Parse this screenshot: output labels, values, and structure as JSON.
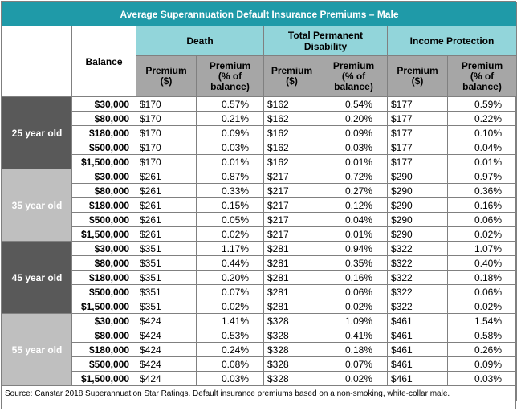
{
  "title": "Average Superannuation Default Insurance Premiums – Male",
  "balance_header": "Balance",
  "groups": [
    "Death",
    "Total Permanent\nDisability",
    "Income Protection"
  ],
  "sub_headers": {
    "premium": "Premium\n($)",
    "pct": "Premium\n(% of\nbalance)"
  },
  "age_groups": [
    {
      "label": "25 year old",
      "rows": [
        {
          "balance": "$30,000",
          "values": [
            "$170",
            "0.57%",
            "$162",
            "0.54%",
            "$177",
            "0.59%"
          ]
        },
        {
          "balance": "$80,000",
          "values": [
            "$170",
            "0.21%",
            "$162",
            "0.20%",
            "$177",
            "0.22%"
          ]
        },
        {
          "balance": "$180,000",
          "values": [
            "$170",
            "0.09%",
            "$162",
            "0.09%",
            "$177",
            "0.10%"
          ]
        },
        {
          "balance": "$500,000",
          "values": [
            "$170",
            "0.03%",
            "$162",
            "0.03%",
            "$177",
            "0.04%"
          ]
        },
        {
          "balance": "$1,500,000",
          "values": [
            "$170",
            "0.01%",
            "$162",
            "0.01%",
            "$177",
            "0.01%"
          ]
        }
      ]
    },
    {
      "label": "35 year old",
      "rows": [
        {
          "balance": "$30,000",
          "values": [
            "$261",
            "0.87%",
            "$217",
            "0.72%",
            "$290",
            "0.97%"
          ]
        },
        {
          "balance": "$80,000",
          "values": [
            "$261",
            "0.33%",
            "$217",
            "0.27%",
            "$290",
            "0.36%"
          ]
        },
        {
          "balance": "$180,000",
          "values": [
            "$261",
            "0.15%",
            "$217",
            "0.12%",
            "$290",
            "0.16%"
          ]
        },
        {
          "balance": "$500,000",
          "values": [
            "$261",
            "0.05%",
            "$217",
            "0.04%",
            "$290",
            "0.06%"
          ]
        },
        {
          "balance": "$1,500,000",
          "values": [
            "$261",
            "0.02%",
            "$217",
            "0.01%",
            "$290",
            "0.02%"
          ]
        }
      ]
    },
    {
      "label": "45 year old",
      "rows": [
        {
          "balance": "$30,000",
          "values": [
            "$351",
            "1.17%",
            "$281",
            "0.94%",
            "$322",
            "1.07%"
          ]
        },
        {
          "balance": "$80,000",
          "values": [
            "$351",
            "0.44%",
            "$281",
            "0.35%",
            "$322",
            "0.40%"
          ]
        },
        {
          "balance": "$180,000",
          "values": [
            "$351",
            "0.20%",
            "$281",
            "0.16%",
            "$322",
            "0.18%"
          ]
        },
        {
          "balance": "$500,000",
          "values": [
            "$351",
            "0.07%",
            "$281",
            "0.06%",
            "$322",
            "0.06%"
          ]
        },
        {
          "balance": "$1,500,000",
          "values": [
            "$351",
            "0.02%",
            "$281",
            "0.02%",
            "$322",
            "0.02%"
          ]
        }
      ]
    },
    {
      "label": "55 year old",
      "rows": [
        {
          "balance": "$30,000",
          "values": [
            "$424",
            "1.41%",
            "$328",
            "1.09%",
            "$461",
            "1.54%"
          ]
        },
        {
          "balance": "$80,000",
          "values": [
            "$424",
            "0.53%",
            "$328",
            "0.41%",
            "$461",
            "0.58%"
          ]
        },
        {
          "balance": "$180,000",
          "values": [
            "$424",
            "0.24%",
            "$328",
            "0.18%",
            "$461",
            "0.26%"
          ]
        },
        {
          "balance": "$500,000",
          "values": [
            "$424",
            "0.08%",
            "$328",
            "0.07%",
            "$461",
            "0.09%"
          ]
        },
        {
          "balance": "$1,500,000",
          "values": [
            "$424",
            "0.03%",
            "$328",
            "0.02%",
            "$461",
            "0.03%"
          ]
        }
      ]
    }
  ],
  "source": "Source: Canstar 2018 Superannuation Star Ratings. Default insurance premiums based on a non-smoking, white-collar male.",
  "colors": {
    "title_bg": "#1f9aa8",
    "group_bg": "#92d5da",
    "subheader_bg": "#a6a6a6",
    "age_dark": "#595959",
    "age_light": "#bfbfbf"
  }
}
